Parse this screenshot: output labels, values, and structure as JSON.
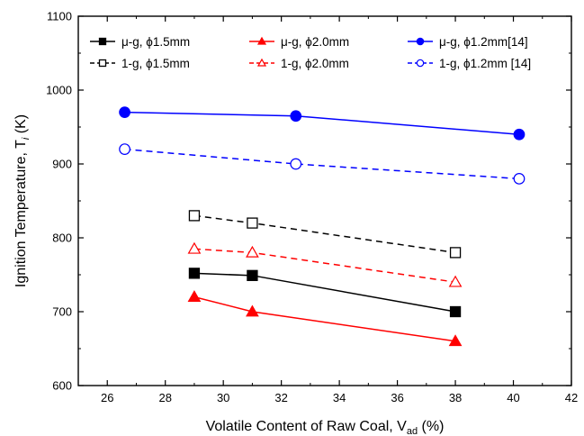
{
  "chart_data": {
    "type": "line",
    "xlabel": "Volatile Content of Raw Coal, V",
    "xlabel_sub": "ad",
    "xlabel_unit": " (%)",
    "ylabel": "Ignition Temperature, T",
    "ylabel_sub": "i",
    "ylabel_unit": " (K)",
    "xlim": [
      25,
      42
    ],
    "ylim": [
      600,
      1100
    ],
    "xticks": [
      "26",
      "28",
      "30",
      "32",
      "34",
      "36",
      "38",
      "40",
      "42"
    ],
    "yticks": [
      "600",
      "700",
      "800",
      "900",
      "1000",
      "1100"
    ],
    "series": [
      {
        "name": "μ-g, ϕ1.5mm",
        "color": "#000000",
        "dash": false,
        "marker": "square",
        "filled": true,
        "x": [
          29,
          31,
          38
        ],
        "y": [
          752,
          749,
          700
        ]
      },
      {
        "name": "μ-g, ϕ2.0mm",
        "color": "#ff0000",
        "dash": false,
        "marker": "triangle",
        "filled": true,
        "x": [
          29,
          31,
          38
        ],
        "y": [
          720,
          700,
          660
        ]
      },
      {
        "name": "μ-g, ϕ1.2mm[14]",
        "color": "#0000ff",
        "dash": false,
        "marker": "circle",
        "filled": true,
        "x": [
          26.6,
          32.5,
          40.2
        ],
        "y": [
          970,
          965,
          940
        ]
      },
      {
        "name": "1-g, ϕ1.5mm",
        "color": "#000000",
        "dash": true,
        "marker": "square",
        "filled": false,
        "x": [
          29,
          31,
          38
        ],
        "y": [
          830,
          820,
          780
        ]
      },
      {
        "name": "1-g, ϕ2.0mm",
        "color": "#ff0000",
        "dash": true,
        "marker": "triangle",
        "filled": false,
        "x": [
          29,
          31,
          38
        ],
        "y": [
          785,
          780,
          740
        ]
      },
      {
        "name": "1-g, ϕ1.2mm [14]",
        "color": "#0000ff",
        "dash": true,
        "marker": "circle",
        "filled": false,
        "x": [
          26.6,
          32.5,
          40.2
        ],
        "y": [
          920,
          900,
          880
        ]
      }
    ],
    "legend_position": "top",
    "grid": false
  }
}
